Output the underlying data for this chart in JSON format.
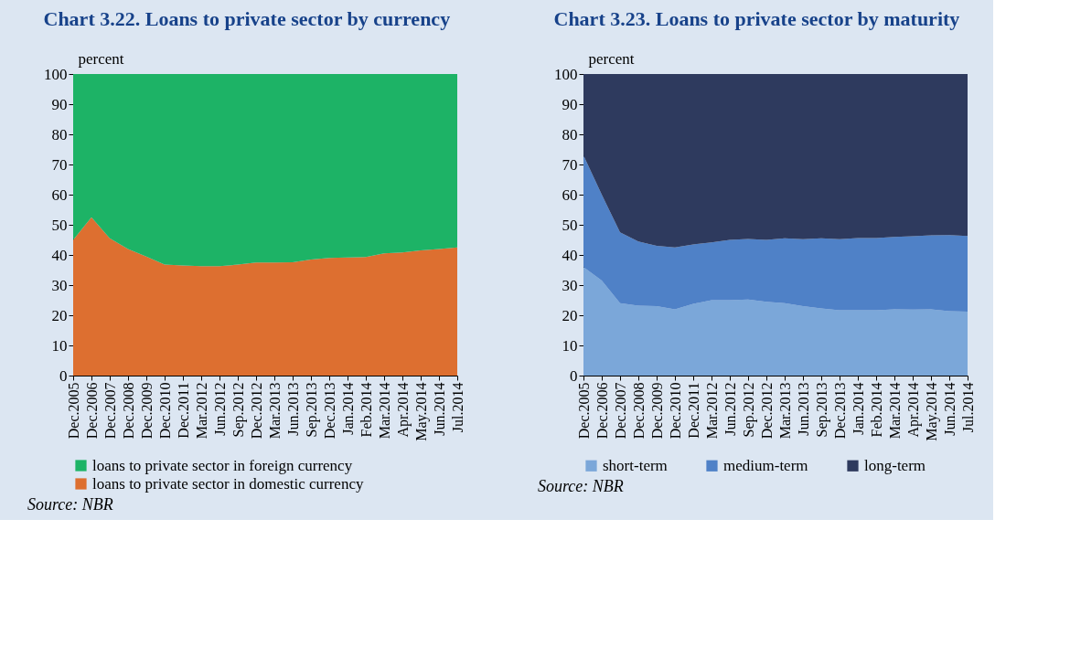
{
  "chart_data": [
    {
      "type": "area",
      "title": "Chart 3.22. Loans to private sector by currency",
      "ylabel": "percent",
      "stacked": true,
      "legend": "bottom",
      "grid": false,
      "categories": [
        "Dec.2005",
        "Dec.2006",
        "Dec.2007",
        "Dec.2008",
        "Dec.2009",
        "Dec.2010",
        "Dec.2011",
        "Mar.2012",
        "Jun.2012",
        "Sep.2012",
        "Dec.2012",
        "Mar.2013",
        "Jun.2013",
        "Sep.2013",
        "Dec.2013",
        "Jan.2014",
        "Feb.2014",
        "Mar.2014",
        "Apr.2014",
        "May.2014",
        "Jun.2014",
        "Jul.2014"
      ],
      "ylim": [
        0,
        100
      ],
      "yticks": [
        0,
        10,
        20,
        30,
        40,
        50,
        60,
        70,
        80,
        90,
        100
      ],
      "series": [
        {
          "name": "loans to private sector in domestic currency",
          "color": "#dd6f30",
          "values": [
            45,
            52.5,
            45.5,
            42,
            39.5,
            36.8,
            36.5,
            36.3,
            36.3,
            36.8,
            37.5,
            37.5,
            37.6,
            38.5,
            39,
            39.2,
            39.3,
            40.5,
            40.8,
            41.5,
            42,
            42.5
          ]
        },
        {
          "name": "loans to private sector in foreign currency",
          "color": "#1db366",
          "values": [
            55,
            47.5,
            54.5,
            58,
            60.5,
            63.2,
            63.5,
            63.7,
            63.7,
            63.2,
            62.5,
            62.5,
            62.4,
            61.5,
            61,
            60.8,
            60.7,
            59.5,
            59.2,
            58.5,
            58,
            57.5
          ]
        }
      ],
      "annotations": [
        "Source: NBR"
      ]
    },
    {
      "type": "area",
      "title": "Chart 3.23. Loans to private sector by maturity",
      "ylabel": "percent",
      "stacked": true,
      "legend": "bottom",
      "grid": false,
      "categories": [
        "Dec.2005",
        "Dec.2006",
        "Dec.2007",
        "Dec.2008",
        "Dec.2009",
        "Dec.2010",
        "Dec.2011",
        "Mar.2012",
        "Jun.2012",
        "Sep.2012",
        "Dec.2012",
        "Mar.2013",
        "Jun.2013",
        "Sep.2013",
        "Dec.2013",
        "Jan.2014",
        "Feb.2014",
        "Mar.2014",
        "Apr.2014",
        "May.2014",
        "Jun.2014",
        "Jul.2014"
      ],
      "ylim": [
        0,
        100
      ],
      "yticks": [
        0,
        10,
        20,
        30,
        40,
        50,
        60,
        70,
        80,
        90,
        100
      ],
      "series": [
        {
          "name": "short-term",
          "color": "#7ba7d9",
          "values": [
            36,
            31.5,
            24,
            23.2,
            23,
            22,
            23.8,
            25,
            25,
            25.2,
            24.5,
            24,
            23,
            22.3,
            21.7,
            21.7,
            21.7,
            22,
            21.9,
            22,
            21.4,
            21.2
          ]
        },
        {
          "name": "medium-term",
          "color": "#4f81c7",
          "values": [
            37,
            28.5,
            23.5,
            21.3,
            20,
            20.5,
            19.7,
            19.2,
            20,
            20.1,
            20.5,
            21.5,
            22.2,
            23.2,
            23.5,
            23.9,
            23.9,
            24,
            24.3,
            24.5,
            25.2,
            25.1
          ]
        },
        {
          "name": "long-term",
          "color": "#2e3a5e",
          "values": [
            27,
            40,
            52.5,
            55.5,
            57,
            57.5,
            56.5,
            55.8,
            55,
            54.7,
            55,
            54.5,
            54.8,
            54.5,
            54.8,
            54.4,
            54.4,
            54,
            53.8,
            53.5,
            53.4,
            53.7
          ]
        }
      ],
      "annotations": [
        "Source: NBR"
      ]
    }
  ]
}
